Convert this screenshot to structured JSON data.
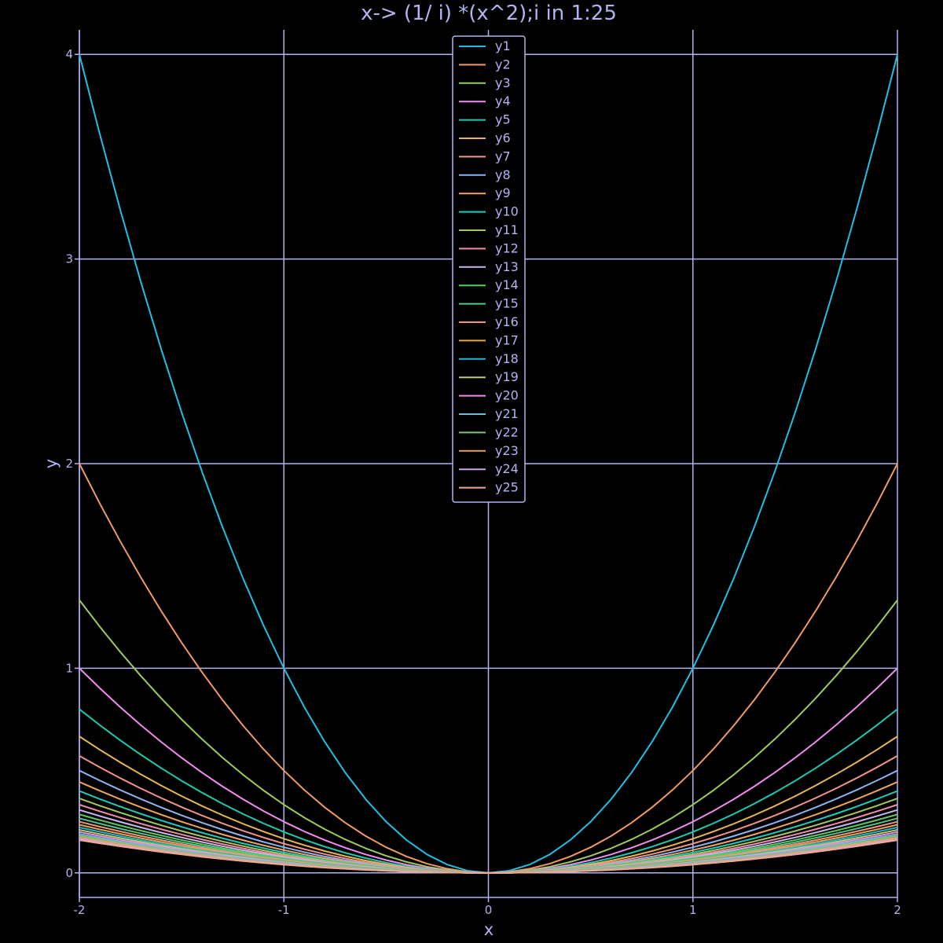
{
  "chart_data": {
    "type": "line",
    "title": "x-> (1/ i) *(x^2);i in 1:25",
    "xlabel": "x",
    "ylabel": "y",
    "xlim": [
      -2,
      2
    ],
    "ylim": [
      -0.12,
      4.12
    ],
    "xticks": [
      -2,
      -1,
      0,
      1,
      2
    ],
    "yticks": [
      0,
      1,
      2,
      3,
      4
    ],
    "xtick_labels": [
      "-2",
      "-1",
      "0",
      "1",
      "2"
    ],
    "ytick_labels": [
      "0",
      "1",
      "2",
      "3",
      "4"
    ],
    "grid": true,
    "legend_position": "top-center",
    "colors": {
      "background": "#000000",
      "axis": "#b3b3f2",
      "text": "#b3b3f2"
    },
    "x": [
      -2.0,
      -1.9,
      -1.8,
      -1.7,
      -1.6,
      -1.5,
      -1.4,
      -1.3,
      -1.2,
      -1.1,
      -1.0,
      -0.9,
      -0.8,
      -0.7,
      -0.6,
      -0.5,
      -0.4,
      -0.3,
      -0.2,
      -0.1,
      0.0,
      0.1,
      0.2,
      0.3,
      0.4,
      0.5,
      0.6,
      0.7,
      0.8,
      0.9,
      1.0,
      1.1,
      1.2,
      1.3,
      1.4,
      1.5,
      1.6,
      1.7,
      1.8,
      1.9,
      2.0
    ],
    "series": [
      {
        "name": "y1",
        "coefficient": 1.0,
        "color": "#1fbfe6"
      },
      {
        "name": "y2",
        "coefficient": 0.5,
        "color": "#f29a64"
      },
      {
        "name": "y3",
        "coefficient": 0.3333,
        "color": "#9ecb5a"
      },
      {
        "name": "y4",
        "coefficient": 0.25,
        "color": "#f08cf0"
      },
      {
        "name": "y5",
        "coefficient": 0.2,
        "color": "#1ccbae"
      },
      {
        "name": "y6",
        "coefficient": 0.1667,
        "color": "#e6b754"
      },
      {
        "name": "y7",
        "coefficient": 0.1429,
        "color": "#f2948c"
      },
      {
        "name": "y8",
        "coefficient": 0.125,
        "color": "#8cb4f0"
      },
      {
        "name": "y9",
        "coefficient": 0.1111,
        "color": "#f2a55a"
      },
      {
        "name": "y10",
        "coefficient": 0.1,
        "color": "#1ccbbd"
      },
      {
        "name": "y11",
        "coefficient": 0.0909,
        "color": "#a6c85a"
      },
      {
        "name": "y12",
        "coefficient": 0.0833,
        "color": "#f28cab"
      },
      {
        "name": "y13",
        "coefficient": 0.0769,
        "color": "#c9b8f0"
      },
      {
        "name": "y14",
        "coefficient": 0.0714,
        "color": "#5ec85f"
      },
      {
        "name": "y15",
        "coefficient": 0.0667,
        "color": "#4cc98a"
      },
      {
        "name": "y16",
        "coefficient": 0.0625,
        "color": "#f2967a"
      },
      {
        "name": "y17",
        "coefficient": 0.0588,
        "color": "#e8a54c"
      },
      {
        "name": "y18",
        "coefficient": 0.0556,
        "color": "#1cb8d8"
      },
      {
        "name": "y19",
        "coefficient": 0.0526,
        "color": "#b8cc6a"
      },
      {
        "name": "y20",
        "coefficient": 0.05,
        "color": "#f08ce8"
      },
      {
        "name": "y21",
        "coefficient": 0.0476,
        "color": "#6cbcd8"
      },
      {
        "name": "y22",
        "coefficient": 0.0455,
        "color": "#7cc87a"
      },
      {
        "name": "y23",
        "coefficient": 0.0435,
        "color": "#e8a060"
      },
      {
        "name": "y24",
        "coefficient": 0.0417,
        "color": "#c8a8e0"
      },
      {
        "name": "y25",
        "coefficient": 0.04,
        "color": "#f2a88c"
      }
    ]
  }
}
